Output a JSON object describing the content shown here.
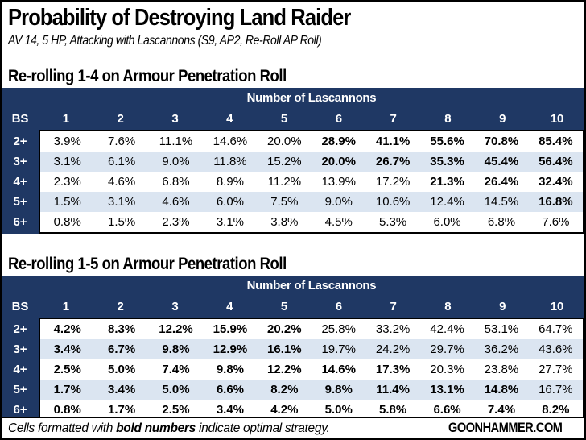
{
  "page": {
    "title": "Probability of Destroying Land Raider",
    "subtitle": "AV 14, 5 HP, Attacking with Lascannons (S9, AP2, Re-Roll AP Roll)",
    "footer_note_prefix": "Cells formatted with ",
    "footer_note_bold": "bold numbers",
    "footer_note_suffix": " indicate optimal strategy.",
    "brand": "GOONHAMMER.COM"
  },
  "colors": {
    "header_navy": "#1f3864",
    "row_stripe": "#dbe5f1",
    "row_white": "#ffffff",
    "border_black": "#000000"
  },
  "chart_data": [
    {
      "type": "table",
      "title": "Re-rolling 1-4 on Armour Penetration Roll",
      "column_group_label": "Number of Lascannons",
      "row_header_label": "BS",
      "columns": [
        "1",
        "2",
        "3",
        "4",
        "5",
        "6",
        "7",
        "8",
        "9",
        "10"
      ],
      "rows": [
        {
          "bs": "2+",
          "values": [
            "3.9%",
            "7.6%",
            "11.1%",
            "14.6%",
            "20.0%",
            "28.9%",
            "41.1%",
            "55.6%",
            "70.8%",
            "85.4%"
          ],
          "bold": [
            0,
            0,
            0,
            0,
            0,
            1,
            1,
            1,
            1,
            1
          ]
        },
        {
          "bs": "3+",
          "values": [
            "3.1%",
            "6.1%",
            "9.0%",
            "11.8%",
            "15.2%",
            "20.0%",
            "26.7%",
            "35.3%",
            "45.4%",
            "56.4%"
          ],
          "bold": [
            0,
            0,
            0,
            0,
            0,
            1,
            1,
            1,
            1,
            1
          ]
        },
        {
          "bs": "4+",
          "values": [
            "2.3%",
            "4.6%",
            "6.8%",
            "8.9%",
            "11.2%",
            "13.9%",
            "17.2%",
            "21.3%",
            "26.4%",
            "32.4%"
          ],
          "bold": [
            0,
            0,
            0,
            0,
            0,
            0,
            0,
            1,
            1,
            1
          ]
        },
        {
          "bs": "5+",
          "values": [
            "1.5%",
            "3.1%",
            "4.6%",
            "6.0%",
            "7.5%",
            "9.0%",
            "10.6%",
            "12.4%",
            "14.5%",
            "16.8%"
          ],
          "bold": [
            0,
            0,
            0,
            0,
            0,
            0,
            0,
            0,
            0,
            1
          ]
        },
        {
          "bs": "6+",
          "values": [
            "0.8%",
            "1.5%",
            "2.3%",
            "3.1%",
            "3.8%",
            "4.5%",
            "5.3%",
            "6.0%",
            "6.8%",
            "7.6%"
          ],
          "bold": [
            0,
            0,
            0,
            0,
            0,
            0,
            0,
            0,
            0,
            0
          ]
        }
      ]
    },
    {
      "type": "table",
      "title": "Re-rolling 1-5 on Armour Penetration Roll",
      "column_group_label": "Number of Lascannons",
      "row_header_label": "BS",
      "columns": [
        "1",
        "2",
        "3",
        "4",
        "5",
        "6",
        "7",
        "8",
        "9",
        "10"
      ],
      "rows": [
        {
          "bs": "2+",
          "values": [
            "4.2%",
            "8.3%",
            "12.2%",
            "15.9%",
            "20.2%",
            "25.8%",
            "33.2%",
            "42.4%",
            "53.1%",
            "64.7%"
          ],
          "bold": [
            1,
            1,
            1,
            1,
            1,
            0,
            0,
            0,
            0,
            0
          ]
        },
        {
          "bs": "3+",
          "values": [
            "3.4%",
            "6.7%",
            "9.8%",
            "12.9%",
            "16.1%",
            "19.7%",
            "24.2%",
            "29.7%",
            "36.2%",
            "43.6%"
          ],
          "bold": [
            1,
            1,
            1,
            1,
            1,
            0,
            0,
            0,
            0,
            0
          ]
        },
        {
          "bs": "4+",
          "values": [
            "2.5%",
            "5.0%",
            "7.4%",
            "9.8%",
            "12.2%",
            "14.6%",
            "17.3%",
            "20.3%",
            "23.8%",
            "27.7%"
          ],
          "bold": [
            1,
            1,
            1,
            1,
            1,
            1,
            1,
            0,
            0,
            0
          ]
        },
        {
          "bs": "5+",
          "values": [
            "1.7%",
            "3.4%",
            "5.0%",
            "6.6%",
            "8.2%",
            "9.8%",
            "11.4%",
            "13.1%",
            "14.8%",
            "16.7%"
          ],
          "bold": [
            1,
            1,
            1,
            1,
            1,
            1,
            1,
            1,
            1,
            0
          ]
        },
        {
          "bs": "6+",
          "values": [
            "0.8%",
            "1.7%",
            "2.5%",
            "3.4%",
            "4.2%",
            "5.0%",
            "5.8%",
            "6.6%",
            "7.4%",
            "8.2%"
          ],
          "bold": [
            1,
            1,
            1,
            1,
            1,
            1,
            1,
            1,
            1,
            1
          ]
        }
      ]
    }
  ]
}
